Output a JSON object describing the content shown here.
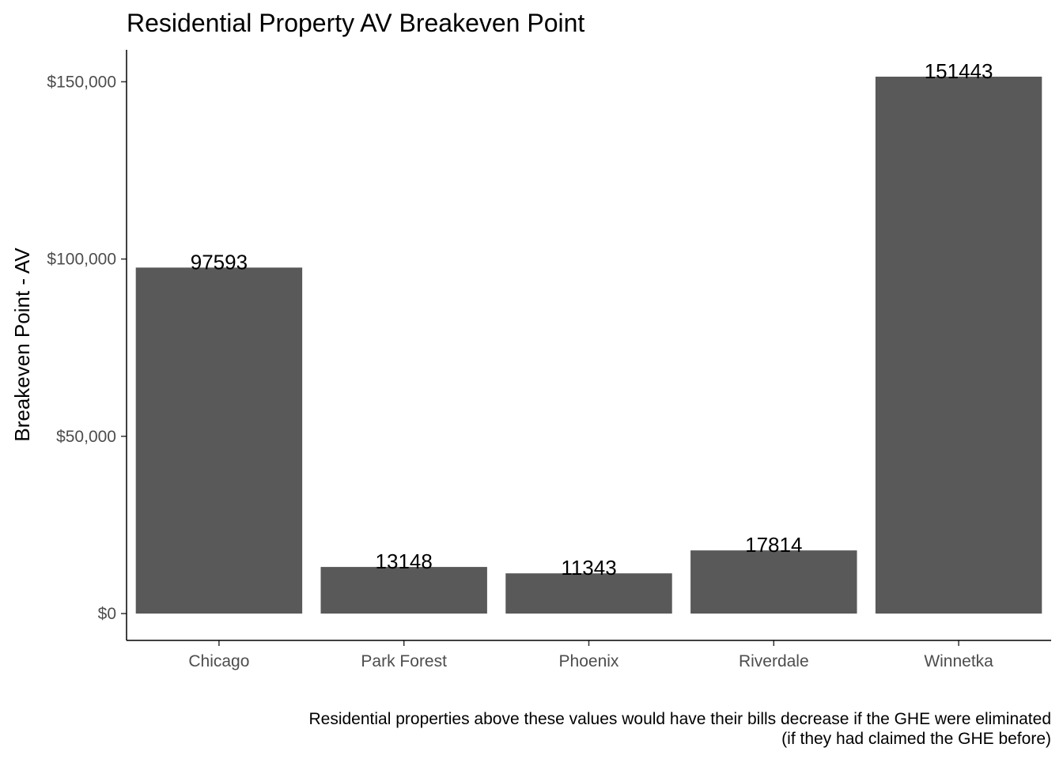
{
  "chart_data": {
    "type": "bar",
    "title": "Residential Property AV Breakeven Point",
    "xlabel": "",
    "ylabel": "Breakeven Point - AV",
    "categories": [
      "Chicago",
      "Park Forest",
      "Phoenix",
      "Riverdale",
      "Winnetka"
    ],
    "values": [
      97593,
      13148,
      11343,
      17814,
      151443
    ],
    "data_labels": [
      "97593",
      "13148",
      "11343",
      "17814",
      "151443"
    ],
    "yticks": [
      0,
      50000,
      100000,
      150000
    ],
    "ytick_labels": [
      "$0",
      "$50,000",
      "$100,000",
      "$150,000"
    ],
    "ylim": [
      -7572,
      159015
    ],
    "grid": false,
    "bar_color": "#595959",
    "caption": [
      "Residential properties above these values would have their bills decrease if the GHE were eliminated",
      "(if they had claimed the GHE before)"
    ]
  }
}
